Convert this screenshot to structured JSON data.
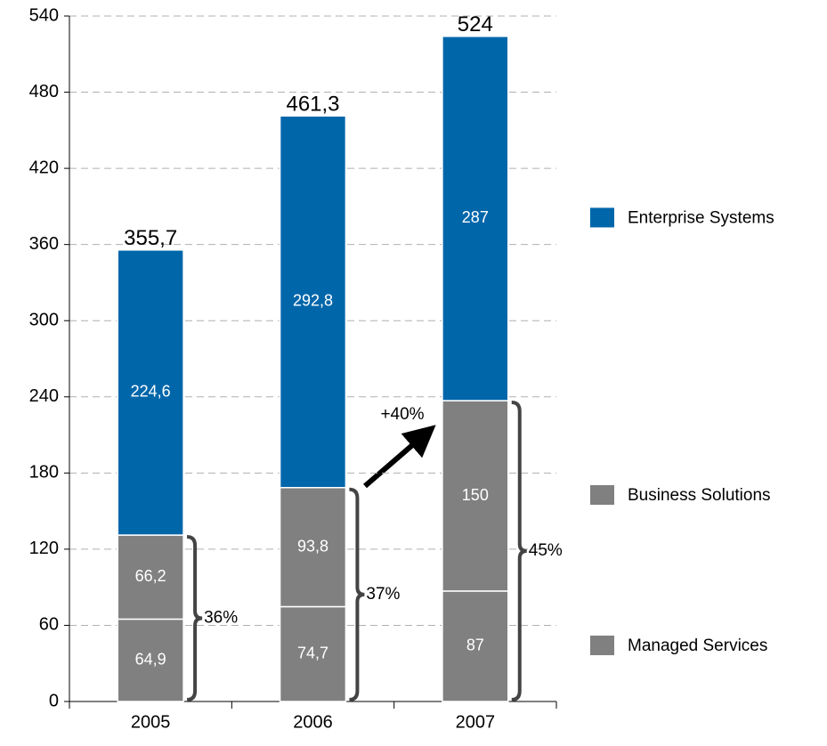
{
  "chart_data": {
    "type": "bar",
    "stacked": true,
    "categories": [
      "2005",
      "2006",
      "2007"
    ],
    "series": [
      {
        "name": "Managed Services",
        "color": "#808080",
        "values": [
          64.9,
          74.7,
          87
        ],
        "value_labels": [
          "64,9",
          "74,7",
          "87"
        ]
      },
      {
        "name": "Business Solutions",
        "color": "#808080",
        "values": [
          66.2,
          93.8,
          150
        ],
        "value_labels": [
          "66,2",
          "93,8",
          "150"
        ]
      },
      {
        "name": "Enterprise Systems",
        "color": "#0066aa",
        "values": [
          224.6,
          292.8,
          287
        ],
        "value_labels": [
          "224,6",
          "292,8",
          "287"
        ]
      }
    ],
    "totals": [
      355.7,
      461.3,
      524
    ],
    "total_labels": [
      "355,7",
      "461,3",
      "524"
    ],
    "annotations": [
      "36%",
      "37%",
      "45%",
      "+40%"
    ],
    "ylim": [
      0,
      540
    ],
    "yticks": [
      0,
      60,
      120,
      180,
      240,
      300,
      360,
      420,
      480,
      540
    ],
    "grid": true,
    "legend": "right"
  }
}
